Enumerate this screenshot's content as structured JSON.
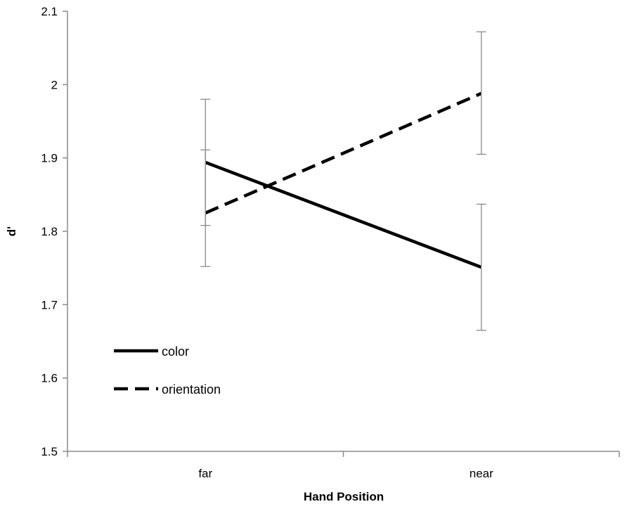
{
  "chart_data": {
    "type": "line",
    "xlabel": "Hand Position",
    "ylabel": "d'",
    "categories": [
      "far",
      "near"
    ],
    "ylim": [
      1.5,
      2.1
    ],
    "yticks": [
      "1.5",
      "1.6",
      "1.7",
      "1.8",
      "1.9",
      "2",
      "2.1"
    ],
    "grid": false,
    "legend_position": "bottom-left",
    "series": [
      {
        "name": "color",
        "style": "solid",
        "color": "#000000",
        "values": [
          1.894,
          1.751
        ],
        "error_low": [
          1.808,
          1.665
        ],
        "error_high": [
          1.98,
          1.837
        ]
      },
      {
        "name": "orientation",
        "style": "dashed",
        "color": "#000000",
        "values": [
          1.825,
          1.988
        ],
        "error_low": [
          1.752,
          1.905
        ],
        "error_high": [
          1.911,
          2.072
        ]
      }
    ]
  }
}
